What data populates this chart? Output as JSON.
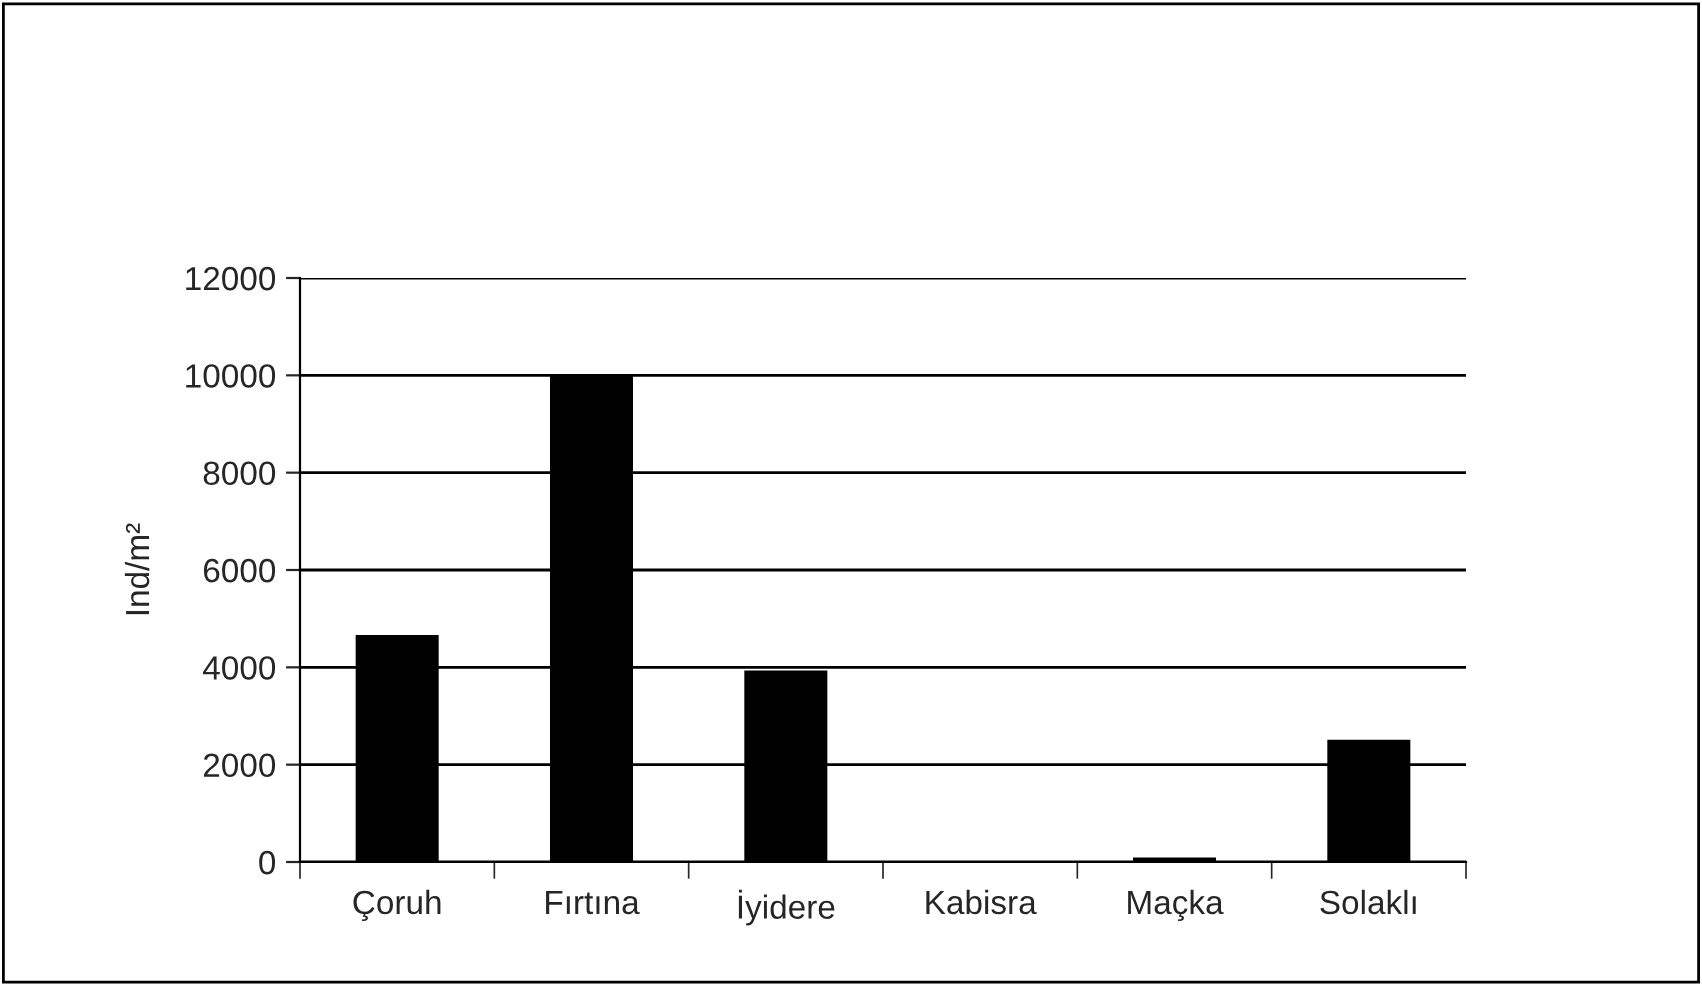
{
  "chart_data": {
    "type": "bar",
    "ylabel": "Ind/m²",
    "categories": [
      "Çoruh",
      "Fırtına",
      "İyidere",
      "Kabisra",
      "Maçka",
      "Solaklı"
    ],
    "values": [
      4650,
      10000,
      3920,
      0,
      80,
      2500
    ],
    "color": "#000000",
    "ylim": [
      0,
      12000
    ],
    "yticks": [
      0,
      2000,
      4000,
      6000,
      8000,
      10000,
      12000
    ],
    "grid": "y",
    "legend": false
  }
}
